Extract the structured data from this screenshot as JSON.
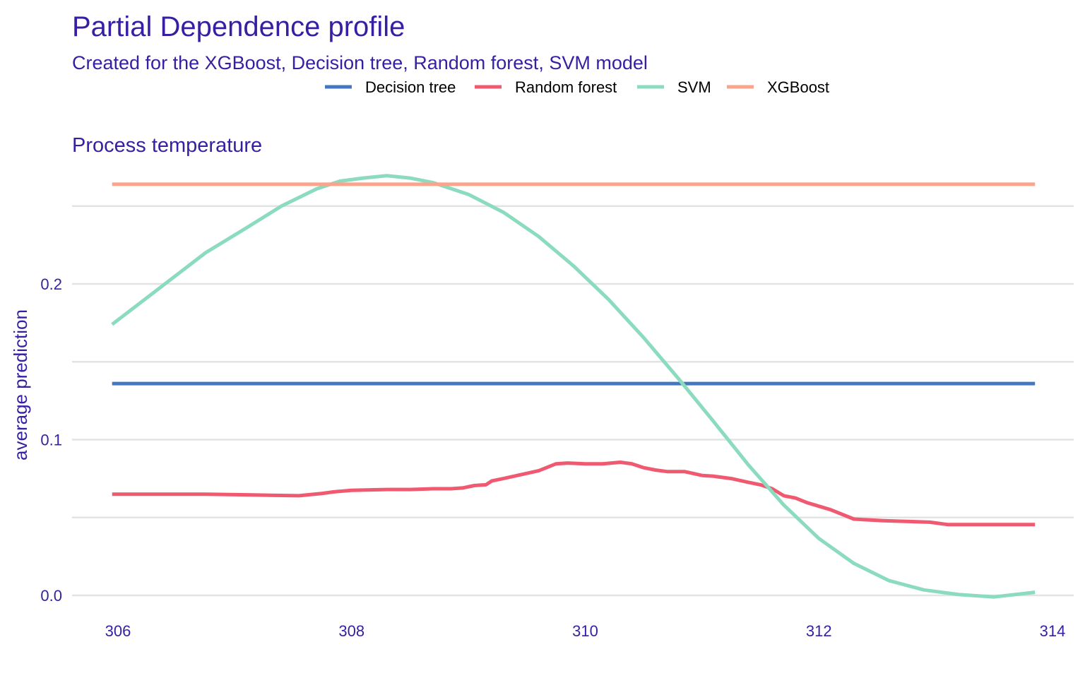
{
  "chart_data": {
    "type": "line",
    "title": "Partial Dependence profile",
    "subtitle": "Created for the XGBoost, Decision tree, Random forest, SVM model",
    "facet_label": "Process  temperature",
    "xlabel": "",
    "ylabel": "average prediction",
    "xlim": [
      305.8,
      314.1
    ],
    "ylim": [
      -0.005,
      0.275
    ],
    "x_ticks": [
      306,
      308,
      310,
      312,
      314
    ],
    "y_ticks": [
      0.0,
      0.1,
      0.2
    ],
    "y_tick_labels": [
      "0.0",
      "0.1",
      "0.2"
    ],
    "y_minor_gridlines": [
      0.05,
      0.15,
      0.25
    ],
    "grid": "horizontal",
    "legend_position": "top",
    "series": [
      {
        "name": "Decision tree",
        "color": "#4378bf",
        "x": [
          305.95,
          313.85
        ],
        "y": [
          0.136,
          0.136
        ]
      },
      {
        "name": "Random forest",
        "color": "#f05a71",
        "x": [
          305.95,
          306.35,
          306.75,
          307.15,
          307.55,
          307.75,
          307.85,
          308.0,
          308.3,
          308.5,
          308.7,
          308.85,
          308.95,
          309.05,
          309.15,
          309.2,
          309.3,
          309.45,
          309.6,
          309.75,
          309.85,
          310.0,
          310.15,
          310.3,
          310.4,
          310.5,
          310.6,
          310.7,
          310.85,
          311.0,
          311.1,
          311.25,
          311.4,
          311.5,
          311.6,
          311.7,
          311.8,
          311.9,
          312.1,
          312.3,
          312.55,
          312.75,
          312.95,
          313.1,
          313.5,
          313.85
        ],
        "y": [
          0.065,
          0.065,
          0.065,
          0.0645,
          0.064,
          0.0655,
          0.0665,
          0.0675,
          0.068,
          0.068,
          0.0685,
          0.0685,
          0.069,
          0.0705,
          0.071,
          0.0735,
          0.075,
          0.0775,
          0.08,
          0.0845,
          0.085,
          0.0845,
          0.0845,
          0.0855,
          0.0845,
          0.082,
          0.0805,
          0.0795,
          0.0795,
          0.077,
          0.0765,
          0.075,
          0.0725,
          0.071,
          0.0685,
          0.064,
          0.0625,
          0.0595,
          0.055,
          0.049,
          0.048,
          0.0475,
          0.047,
          0.0455,
          0.0455,
          0.0455
        ]
      },
      {
        "name": "SVM",
        "color": "#8bdcbe",
        "x": [
          305.95,
          306.35,
          306.75,
          307.1,
          307.4,
          307.7,
          307.9,
          308.1,
          308.3,
          308.5,
          308.7,
          309.0,
          309.3,
          309.6,
          309.9,
          310.2,
          310.5,
          310.8,
          311.1,
          311.4,
          311.7,
          312.0,
          312.3,
          312.6,
          312.9,
          313.2,
          313.5,
          313.85
        ],
        "y": [
          0.174,
          0.197,
          0.22,
          0.236,
          0.25,
          0.261,
          0.266,
          0.268,
          0.2695,
          0.268,
          0.265,
          0.2575,
          0.246,
          0.2305,
          0.2115,
          0.19,
          0.1655,
          0.139,
          0.1115,
          0.0835,
          0.058,
          0.0365,
          0.0205,
          0.0095,
          0.0035,
          0.0005,
          -0.001,
          0.002
        ]
      },
      {
        "name": "XGBoost",
        "color": "#f9a48b",
        "x": [
          305.95,
          313.85
        ],
        "y": [
          0.264,
          0.264
        ]
      }
    ]
  }
}
